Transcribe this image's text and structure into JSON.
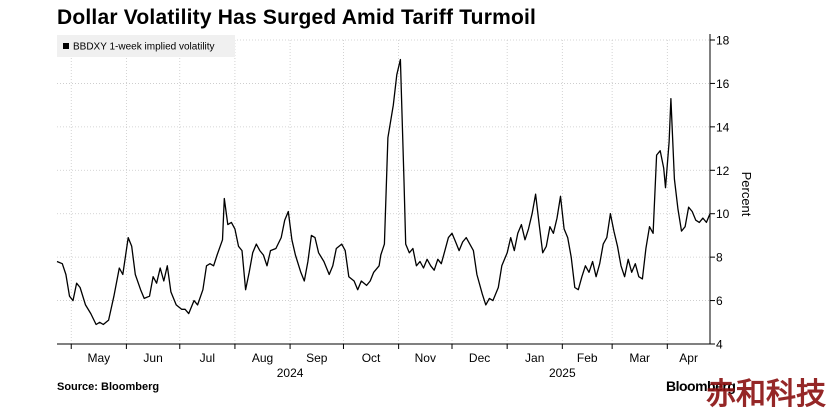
{
  "title": "Dollar Volatility Has Surged Amid Tariff Turmoil",
  "source": "Source: Bloomberg",
  "brand": "Bloomberg",
  "watermark": "赤和科技",
  "chart_data": {
    "type": "line",
    "legend": [
      "BBDXY 1-week implied volatility"
    ],
    "legend_position": "top-left",
    "ylabel": "Percent",
    "ylim": [
      4,
      18
    ],
    "yticks": [
      4,
      6,
      8,
      10,
      12,
      14,
      16,
      18
    ],
    "y_axis_side": "right",
    "grid": "dashed",
    "x_month_labels": [
      "May",
      "Jun",
      "Jul",
      "Aug",
      "Sep",
      "Oct",
      "Nov",
      "Dec",
      "Jan",
      "Feb",
      "Mar",
      "Apr"
    ],
    "x_year_labels": [
      "2024",
      "2025"
    ],
    "xlim": [
      "2024-04-23",
      "2025-04-25"
    ],
    "series": [
      {
        "name": "BBDXY 1-week implied volatility",
        "color": "#000000",
        "points": [
          [
            "2024-04-23",
            7.8
          ],
          [
            "2024-04-26",
            7.7
          ],
          [
            "2024-04-28",
            7.2
          ],
          [
            "2024-04-30",
            6.2
          ],
          [
            "2024-05-02",
            6.0
          ],
          [
            "2024-05-04",
            6.8
          ],
          [
            "2024-05-06",
            6.6
          ],
          [
            "2024-05-09",
            5.8
          ],
          [
            "2024-05-12",
            5.4
          ],
          [
            "2024-05-15",
            4.9
          ],
          [
            "2024-05-17",
            5.0
          ],
          [
            "2024-05-19",
            4.9
          ],
          [
            "2024-05-22",
            5.1
          ],
          [
            "2024-05-25",
            6.2
          ],
          [
            "2024-05-28",
            7.5
          ],
          [
            "2024-05-30",
            7.2
          ],
          [
            "2024-06-02",
            8.9
          ],
          [
            "2024-06-04",
            8.5
          ],
          [
            "2024-06-06",
            7.2
          ],
          [
            "2024-06-09",
            6.5
          ],
          [
            "2024-06-11",
            6.1
          ],
          [
            "2024-06-14",
            6.2
          ],
          [
            "2024-06-16",
            7.1
          ],
          [
            "2024-06-18",
            6.8
          ],
          [
            "2024-06-20",
            7.5
          ],
          [
            "2024-06-22",
            6.9
          ],
          [
            "2024-06-24",
            7.6
          ],
          [
            "2024-06-26",
            6.4
          ],
          [
            "2024-06-29",
            5.8
          ],
          [
            "2024-07-02",
            5.6
          ],
          [
            "2024-07-04",
            5.6
          ],
          [
            "2024-07-06",
            5.4
          ],
          [
            "2024-07-09",
            6.0
          ],
          [
            "2024-07-11",
            5.8
          ],
          [
            "2024-07-14",
            6.5
          ],
          [
            "2024-07-16",
            7.6
          ],
          [
            "2024-07-18",
            7.7
          ],
          [
            "2024-07-20",
            7.6
          ],
          [
            "2024-07-22",
            8.1
          ],
          [
            "2024-07-25",
            8.8
          ],
          [
            "2024-07-26",
            10.7
          ],
          [
            "2024-07-28",
            9.5
          ],
          [
            "2024-07-30",
            9.6
          ],
          [
            "2024-08-01",
            9.3
          ],
          [
            "2024-08-03",
            8.5
          ],
          [
            "2024-08-05",
            8.3
          ],
          [
            "2024-08-07",
            6.5
          ],
          [
            "2024-08-09",
            7.3
          ],
          [
            "2024-08-11",
            8.2
          ],
          [
            "2024-08-13",
            8.6
          ],
          [
            "2024-08-15",
            8.3
          ],
          [
            "2024-08-17",
            8.1
          ],
          [
            "2024-08-19",
            7.6
          ],
          [
            "2024-08-21",
            8.3
          ],
          [
            "2024-08-24",
            8.4
          ],
          [
            "2024-08-27",
            8.9
          ],
          [
            "2024-08-29",
            9.7
          ],
          [
            "2024-08-31",
            10.1
          ],
          [
            "2024-09-02",
            8.8
          ],
          [
            "2024-09-04",
            8.1
          ],
          [
            "2024-09-07",
            7.3
          ],
          [
            "2024-09-09",
            6.9
          ],
          [
            "2024-09-11",
            7.8
          ],
          [
            "2024-09-13",
            9.0
          ],
          [
            "2024-09-15",
            8.9
          ],
          [
            "2024-09-17",
            8.2
          ],
          [
            "2024-09-20",
            7.8
          ],
          [
            "2024-09-23",
            7.2
          ],
          [
            "2024-09-25",
            7.6
          ],
          [
            "2024-09-27",
            8.4
          ],
          [
            "2024-09-30",
            8.6
          ],
          [
            "2024-10-02",
            8.3
          ],
          [
            "2024-10-04",
            7.1
          ],
          [
            "2024-10-07",
            6.9
          ],
          [
            "2024-10-09",
            6.5
          ],
          [
            "2024-10-11",
            6.9
          ],
          [
            "2024-10-14",
            6.7
          ],
          [
            "2024-10-16",
            6.9
          ],
          [
            "2024-10-18",
            7.3
          ],
          [
            "2024-10-21",
            7.6
          ],
          [
            "2024-10-22",
            8.1
          ],
          [
            "2024-10-24",
            8.6
          ],
          [
            "2024-10-26",
            13.5
          ],
          [
            "2024-10-29",
            15.0
          ],
          [
            "2024-10-31",
            16.4
          ],
          [
            "2024-11-02",
            17.1
          ],
          [
            "2024-11-04",
            11.5
          ],
          [
            "2024-11-05",
            8.6
          ],
          [
            "2024-11-07",
            8.2
          ],
          [
            "2024-11-09",
            8.4
          ],
          [
            "2024-11-11",
            7.6
          ],
          [
            "2024-11-13",
            7.8
          ],
          [
            "2024-11-15",
            7.5
          ],
          [
            "2024-11-17",
            7.9
          ],
          [
            "2024-11-19",
            7.6
          ],
          [
            "2024-11-21",
            7.4
          ],
          [
            "2024-11-23",
            7.9
          ],
          [
            "2024-11-25",
            7.7
          ],
          [
            "2024-11-27",
            8.3
          ],
          [
            "2024-11-29",
            8.9
          ],
          [
            "2024-12-01",
            9.1
          ],
          [
            "2024-12-03",
            8.7
          ],
          [
            "2024-12-05",
            8.3
          ],
          [
            "2024-12-07",
            8.7
          ],
          [
            "2024-12-09",
            8.9
          ],
          [
            "2024-12-11",
            8.6
          ],
          [
            "2024-12-13",
            8.3
          ],
          [
            "2024-12-15",
            7.2
          ],
          [
            "2024-12-18",
            6.3
          ],
          [
            "2024-12-20",
            5.8
          ],
          [
            "2024-12-22",
            6.1
          ],
          [
            "2024-12-24",
            6.0
          ],
          [
            "2024-12-27",
            6.6
          ],
          [
            "2024-12-29",
            7.6
          ],
          [
            "2025-01-01",
            8.2
          ],
          [
            "2025-01-03",
            8.9
          ],
          [
            "2025-01-05",
            8.3
          ],
          [
            "2025-01-07",
            9.1
          ],
          [
            "2025-01-09",
            9.5
          ],
          [
            "2025-01-11",
            8.8
          ],
          [
            "2025-01-13",
            9.3
          ],
          [
            "2025-01-15",
            10.0
          ],
          [
            "2025-01-17",
            10.9
          ],
          [
            "2025-01-19",
            9.5
          ],
          [
            "2025-01-21",
            8.2
          ],
          [
            "2025-01-23",
            8.5
          ],
          [
            "2025-01-25",
            9.4
          ],
          [
            "2025-01-27",
            9.1
          ],
          [
            "2025-01-29",
            9.8
          ],
          [
            "2025-01-31",
            10.8
          ],
          [
            "2025-02-02",
            9.3
          ],
          [
            "2025-02-04",
            8.9
          ],
          [
            "2025-02-06",
            8.0
          ],
          [
            "2025-02-08",
            6.6
          ],
          [
            "2025-02-10",
            6.5
          ],
          [
            "2025-02-12",
            7.1
          ],
          [
            "2025-02-14",
            7.6
          ],
          [
            "2025-02-16",
            7.3
          ],
          [
            "2025-02-18",
            7.8
          ],
          [
            "2025-02-20",
            7.1
          ],
          [
            "2025-02-22",
            7.7
          ],
          [
            "2025-02-24",
            8.6
          ],
          [
            "2025-02-26",
            8.9
          ],
          [
            "2025-02-28",
            10.0
          ],
          [
            "2025-03-02",
            9.2
          ],
          [
            "2025-03-04",
            8.5
          ],
          [
            "2025-03-06",
            7.6
          ],
          [
            "2025-03-08",
            7.1
          ],
          [
            "2025-03-10",
            7.9
          ],
          [
            "2025-03-12",
            7.3
          ],
          [
            "2025-03-14",
            7.7
          ],
          [
            "2025-03-16",
            7.1
          ],
          [
            "2025-03-18",
            7.0
          ],
          [
            "2025-03-20",
            8.4
          ],
          [
            "2025-03-22",
            9.4
          ],
          [
            "2025-03-24",
            9.1
          ],
          [
            "2025-03-26",
            12.7
          ],
          [
            "2025-03-28",
            12.9
          ],
          [
            "2025-03-30",
            12.1
          ],
          [
            "2025-03-31",
            11.2
          ],
          [
            "2025-04-02",
            13.3
          ],
          [
            "2025-04-03",
            15.3
          ],
          [
            "2025-04-05",
            11.6
          ],
          [
            "2025-04-07",
            10.2
          ],
          [
            "2025-04-09",
            9.2
          ],
          [
            "2025-04-11",
            9.4
          ],
          [
            "2025-04-13",
            10.3
          ],
          [
            "2025-04-15",
            10.1
          ],
          [
            "2025-04-17",
            9.7
          ],
          [
            "2025-04-19",
            9.6
          ],
          [
            "2025-04-21",
            9.8
          ],
          [
            "2025-04-23",
            9.6
          ],
          [
            "2025-04-25",
            10.0
          ]
        ]
      }
    ]
  }
}
